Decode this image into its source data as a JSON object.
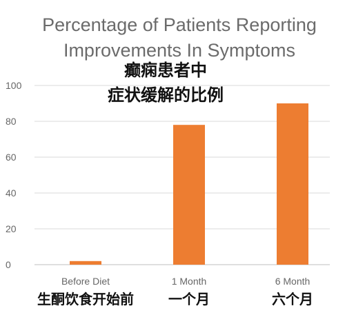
{
  "chart_data": {
    "type": "bar",
    "title": "Percentage of Patients Reporting Improvements In Symptoms",
    "title_lines": [
      "Percentage of Patients Reporting",
      "Improvements In Symptoms"
    ],
    "subtitle_lines": [
      "癫痫患者中",
      "症状缓解的比例"
    ],
    "categories": [
      "Before Diet",
      "1 Month",
      "6 Month"
    ],
    "categories_zh": [
      "生酮饮食开始前",
      "一个月",
      "六个月"
    ],
    "values": [
      2,
      78,
      90
    ],
    "ylim": [
      0,
      100
    ],
    "yticks": [
      0,
      20,
      40,
      60,
      80,
      100
    ],
    "grid": true,
    "legend": "none",
    "bar_color": "#ed7d31",
    "xlabel": "",
    "ylabel": ""
  }
}
